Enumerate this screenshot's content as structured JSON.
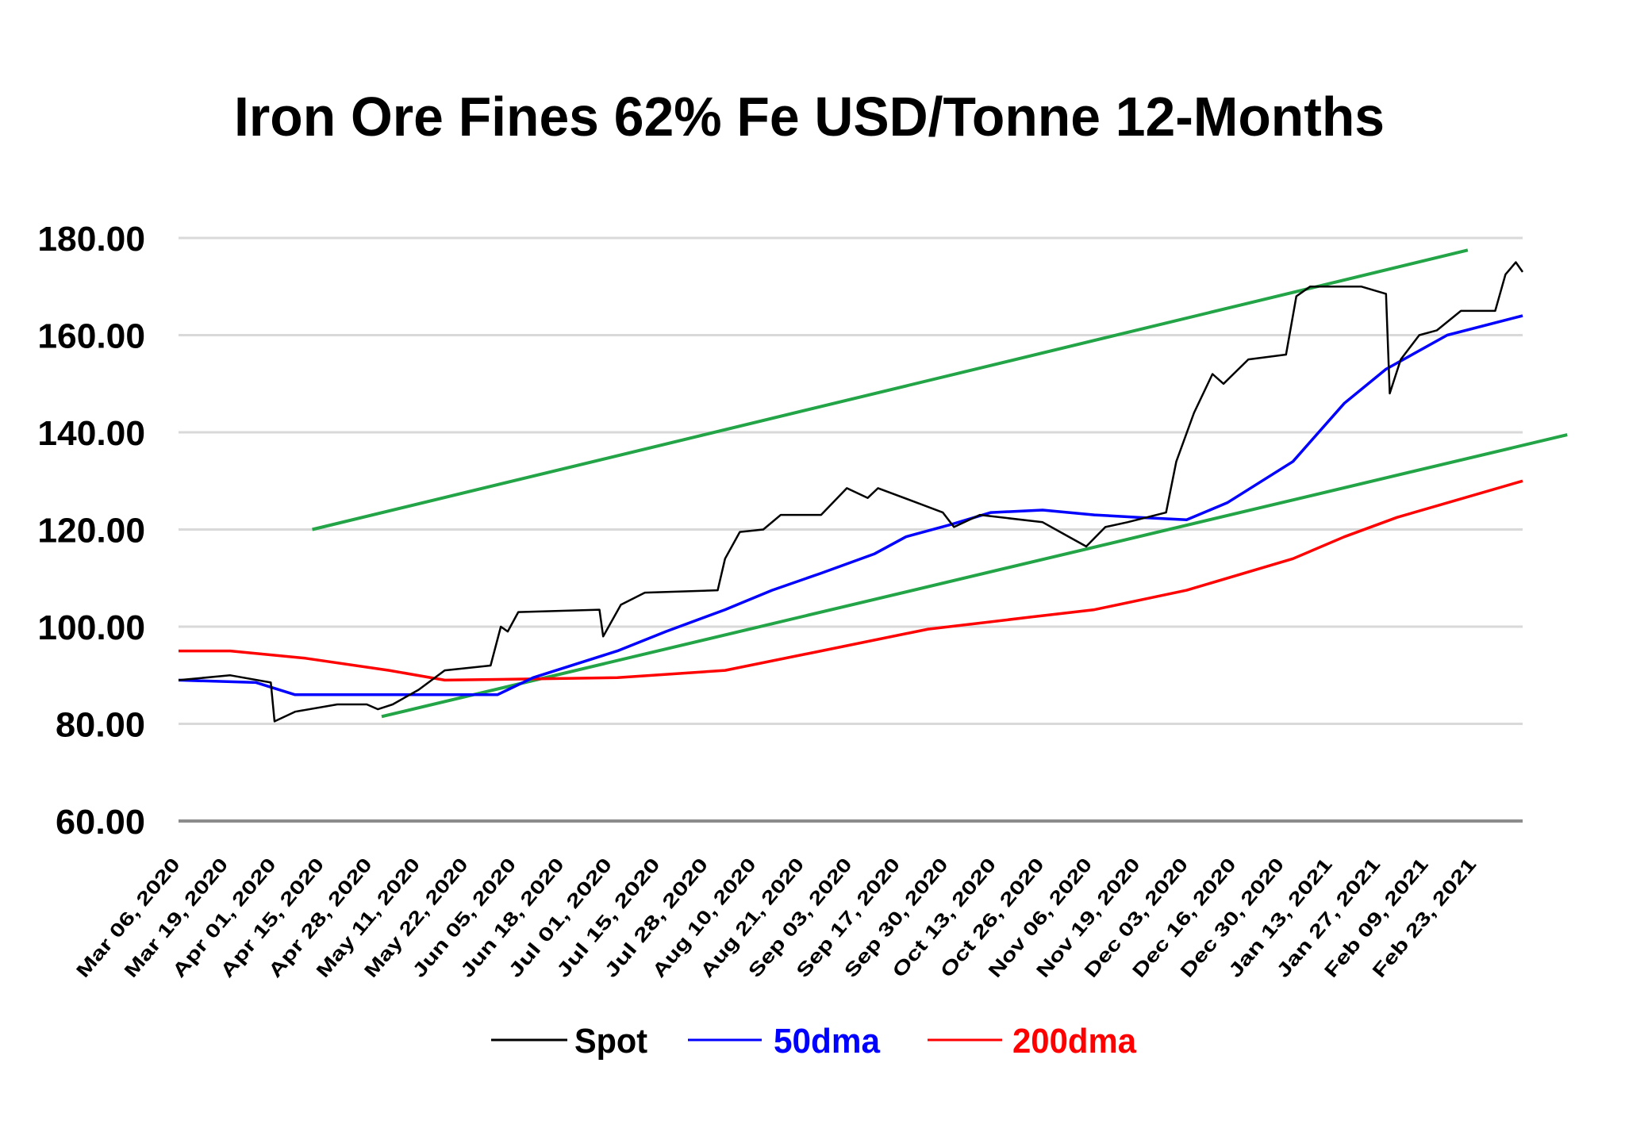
{
  "chart_data": {
    "type": "line",
    "title": "Iron Ore Fines 62% Fe USD/Tonne  12-Months",
    "xlabel": "",
    "ylabel": "",
    "ylim": [
      60,
      180
    ],
    "yticks": [
      "60.00",
      "80.00",
      "100.00",
      "120.00",
      "140.00",
      "160.00",
      "180.00"
    ],
    "xticks": [
      "Mar 06, 2020",
      "Mar 19, 2020",
      "Apr 01, 2020",
      "Apr 15, 2020",
      "Apr 28, 2020",
      "May 11, 2020",
      "May 22, 2020",
      "Jun 05, 2020",
      "Jun 18, 2020",
      "Jul 01, 2020",
      "Jul 15, 2020",
      "Jul 28, 2020",
      "Aug 10, 2020",
      "Aug 21, 2020",
      "Sep 03, 2020",
      "Sep 17, 2020",
      "Sep 30, 2020",
      "Oct 13, 2020",
      "Oct 26, 2020",
      "Nov 06, 2020",
      "Nov 19, 2020",
      "Dec 03, 2020",
      "Dec 16, 2020",
      "Dec 30, 2020",
      "Jan 13, 2021",
      "Jan 27, 2021",
      "Feb 09, 2021",
      "Feb 23, 2021"
    ],
    "grid": true,
    "legend_position": "bottom",
    "series": [
      {
        "name": "Spot",
        "color": "#000000",
        "points": [
          [
            "2020-03-06",
            89
          ],
          [
            "2020-03-20",
            90
          ],
          [
            "2020-03-31",
            88.5
          ],
          [
            "2020-04-01",
            80.5
          ],
          [
            "2020-04-07",
            82.5
          ],
          [
            "2020-04-19",
            84
          ],
          [
            "2020-04-27",
            84
          ],
          [
            "2020-04-30",
            83
          ],
          [
            "2020-05-04",
            84
          ],
          [
            "2020-05-11",
            87
          ],
          [
            "2020-05-17",
            91
          ],
          [
            "2020-05-29",
            92
          ],
          [
            "2020-06-01",
            100
          ],
          [
            "2020-06-03",
            99
          ],
          [
            "2020-06-06",
            103
          ],
          [
            "2020-06-28",
            103.5
          ],
          [
            "2020-06-29",
            98
          ],
          [
            "2020-07-04",
            104.5
          ],
          [
            "2020-07-11",
            107
          ],
          [
            "2020-07-31",
            107.5
          ],
          [
            "2020-08-02",
            114
          ],
          [
            "2020-08-06",
            119.5
          ],
          [
            "2020-08-12",
            120
          ],
          [
            "2020-08-16",
            123
          ],
          [
            "2020-08-26",
            123
          ],
          [
            "2020-09-02",
            128.5
          ],
          [
            "2020-09-08",
            126.5
          ],
          [
            "2020-09-11",
            128.5
          ],
          [
            "2020-09-22",
            125.5
          ],
          [
            "2020-09-29",
            123.5
          ],
          [
            "2020-10-02",
            120.5
          ],
          [
            "2020-10-09",
            123
          ],
          [
            "2020-10-26",
            121.5
          ],
          [
            "2020-10-31",
            119
          ],
          [
            "2020-11-05",
            116.5
          ],
          [
            "2020-11-10",
            120.5
          ],
          [
            "2020-11-16",
            121.5
          ],
          [
            "2020-11-27",
            123.5
          ],
          [
            "2020-11-30",
            134
          ],
          [
            "2020-12-05",
            144
          ],
          [
            "2020-12-10",
            152
          ],
          [
            "2020-12-13",
            150
          ],
          [
            "2020-12-20",
            155
          ],
          [
            "2020-12-31",
            156
          ],
          [
            "2021-01-03",
            168
          ],
          [
            "2021-01-07",
            170
          ],
          [
            "2021-01-22",
            170
          ],
          [
            "2021-01-29",
            168.5
          ],
          [
            "2021-01-30",
            148
          ],
          [
            "2021-02-02",
            155
          ],
          [
            "2021-02-07",
            160
          ],
          [
            "2021-02-12",
            161
          ],
          [
            "2021-02-19",
            165
          ],
          [
            "2021-03-01",
            165
          ],
          [
            "2021-03-04",
            172.5
          ],
          [
            "2021-03-07",
            175
          ],
          [
            "2021-03-09",
            173
          ]
        ]
      },
      {
        "name": "50dma",
        "color": "#0000ff",
        "points": [
          [
            "2020-03-06",
            89
          ],
          [
            "2020-03-27",
            88.5
          ],
          [
            "2020-04-07",
            86
          ],
          [
            "2020-05-31",
            86
          ],
          [
            "2020-06-10",
            89.5
          ],
          [
            "2020-07-03",
            95
          ],
          [
            "2020-07-17",
            99
          ],
          [
            "2020-08-02",
            103.5
          ],
          [
            "2020-08-14",
            107.5
          ],
          [
            "2020-08-26",
            111
          ],
          [
            "2020-09-10",
            115
          ],
          [
            "2020-09-19",
            118.5
          ],
          [
            "2020-10-01",
            121
          ],
          [
            "2020-10-12",
            123.5
          ],
          [
            "2020-10-26",
            124
          ],
          [
            "2020-11-07",
            123
          ],
          [
            "2020-11-19",
            122.5
          ],
          [
            "2020-12-03",
            122
          ],
          [
            "2020-12-14",
            125.5
          ],
          [
            "2021-01-02",
            134
          ],
          [
            "2021-01-17",
            146
          ],
          [
            "2021-01-29",
            153
          ],
          [
            "2021-02-15",
            160
          ],
          [
            "2021-03-09",
            164
          ]
        ]
      },
      {
        "name": "200dma",
        "color": "#ff0000",
        "points": [
          [
            "2020-03-06",
            95
          ],
          [
            "2020-03-20",
            95
          ],
          [
            "2020-04-10",
            93.5
          ],
          [
            "2020-05-03",
            91
          ],
          [
            "2020-05-17",
            89
          ],
          [
            "2020-07-03",
            89.5
          ],
          [
            "2020-08-02",
            91
          ],
          [
            "2020-08-26",
            95
          ],
          [
            "2020-09-25",
            99.5
          ],
          [
            "2020-10-23",
            102
          ],
          [
            "2020-11-07",
            103.5
          ],
          [
            "2020-12-03",
            107.5
          ],
          [
            "2021-01-02",
            114
          ],
          [
            "2021-01-17",
            118.5
          ],
          [
            "2021-02-01",
            122.5
          ],
          [
            "2021-03-09",
            130
          ]
        ]
      }
    ],
    "trendlines": [
      {
        "color": "#22a447",
        "points": [
          [
            "2020-04-12",
            120
          ],
          [
            "2021-02-21",
            177.5
          ]
        ]
      },
      {
        "color": "#22a447",
        "points": [
          [
            "2020-05-01",
            81.5
          ],
          [
            "2021-03-22",
            139.5
          ]
        ]
      }
    ]
  }
}
